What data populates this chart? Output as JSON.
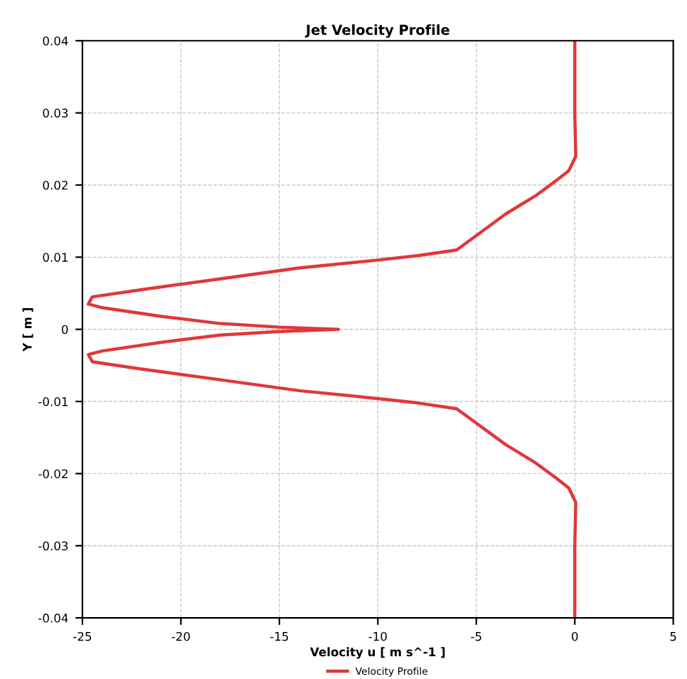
{
  "chart_data": {
    "type": "line",
    "title": "Jet Velocity Profile",
    "xlabel": "Velocity u [ m s^-1 ]",
    "ylabel": "Y [ m ]",
    "x": [
      0,
      0,
      0.05,
      -0.3,
      -1,
      -2,
      -3.5,
      -5,
      -6,
      -8,
      -10,
      -14,
      -18,
      -22,
      -24.5,
      -24.7,
      -24,
      -21,
      -18,
      -15,
      -12,
      -15,
      -18,
      -21,
      -24,
      -24.7,
      -24.5,
      -22,
      -18,
      -14,
      -10,
      -8,
      -6,
      -5,
      -3.5,
      -2,
      -1,
      -0.3,
      0.05,
      0,
      0
    ],
    "series": [
      {
        "name": "Velocity Profile",
        "color": "#e03838",
        "values": [
          0.04,
          0.03,
          0.024,
          0.022,
          0.0205,
          0.0185,
          0.016,
          0.013,
          0.011,
          0.0102,
          0.0096,
          0.0085,
          0.007,
          0.0055,
          0.0045,
          0.0035,
          0.003,
          0.0018,
          0.0008,
          0.0003,
          0,
          -0.0003,
          -0.0008,
          -0.0018,
          -0.003,
          -0.0035,
          -0.0045,
          -0.0055,
          -0.007,
          -0.0085,
          -0.0096,
          -0.0102,
          -0.011,
          -0.013,
          -0.016,
          -0.0185,
          -0.0205,
          -0.022,
          -0.024,
          -0.03,
          -0.04
        ]
      }
    ],
    "xlim": [
      -25,
      5
    ],
    "xticks": [
      -25,
      -20,
      -15,
      -10,
      -5,
      0,
      5
    ],
    "ylim": [
      -0.04,
      0.04
    ],
    "yticks": [
      -0.04,
      -0.03,
      -0.02,
      -0.01,
      0,
      0.01,
      0.02,
      0.03,
      0.04
    ],
    "grid": true,
    "legend": "bottom",
    "marker": "none",
    "line_style": "solid"
  }
}
